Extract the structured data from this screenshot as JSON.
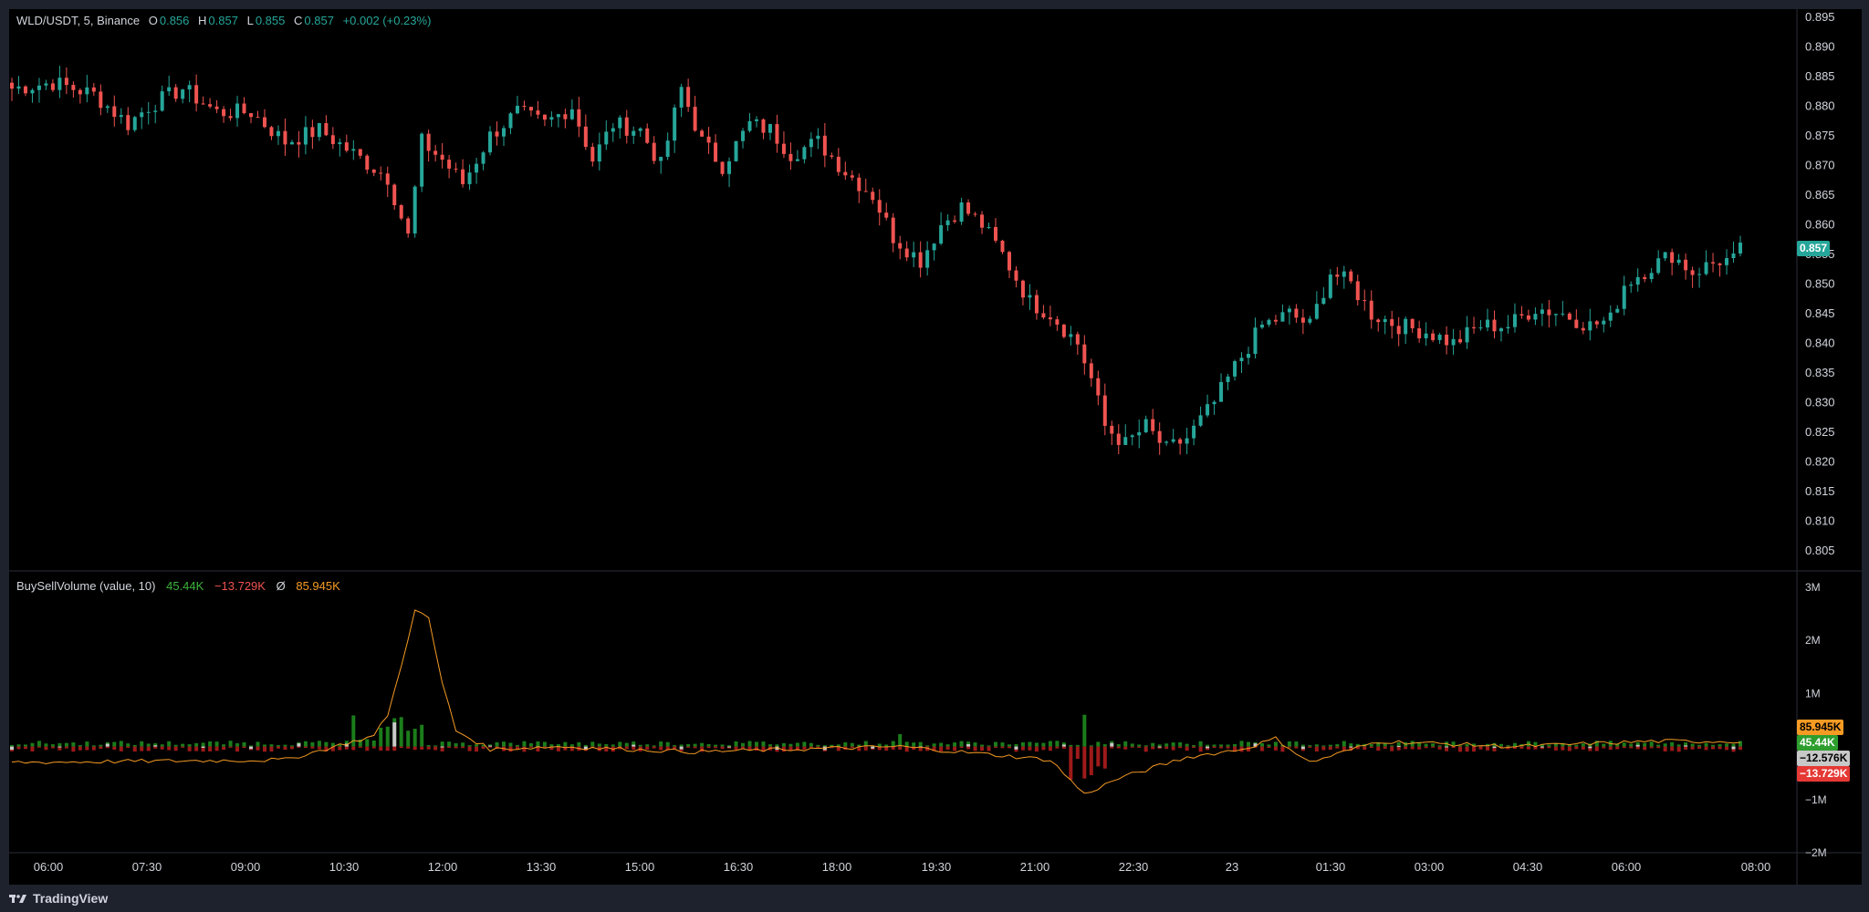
{
  "legend": {
    "symbol": "WLD/USDT, 5, Binance",
    "o_label": "O",
    "o_value": "0.856",
    "h_label": "H",
    "h_value": "0.857",
    "l_label": "L",
    "l_value": "0.855",
    "c_label": "C",
    "c_value": "0.857",
    "change": "+0.002 (+0.23%)"
  },
  "indicator": {
    "name": "BuySellVolume (value, 10)",
    "buy": "45.44K",
    "sell": "−13.729K",
    "avg_symbol": "Ø",
    "avg": "85.945K"
  },
  "badges": {
    "price": "0.857",
    "avg": "85.945K",
    "buy": "45.44K",
    "net": "−12.576K",
    "sell": "−13.729K"
  },
  "branding": {
    "name": "TradingView"
  },
  "colors": {
    "up": "#26a69a",
    "down": "#ef5350",
    "buy_vol": "#1b7d1b",
    "sell_vol": "#9e1a1a",
    "net_vol": "#c8c8c8",
    "avg_line": "#f59a23",
    "background": "#000000",
    "frame": "#1e222d"
  },
  "chart_data": [
    {
      "type": "candlestick",
      "symbol": "WLD/USDT",
      "interval": "5",
      "exchange": "Binance",
      "y_ticks": [
        "0.805",
        "0.810",
        "0.815",
        "0.820",
        "0.825",
        "0.830",
        "0.835",
        "0.840",
        "0.845",
        "0.850",
        "0.855",
        "0.860",
        "0.865",
        "0.870",
        "0.875",
        "0.880",
        "0.885",
        "0.890",
        "0.895"
      ],
      "x_ticks": [
        "06:00",
        "07:30",
        "09:00",
        "10:30",
        "12:00",
        "13:30",
        "15:00",
        "16:30",
        "18:00",
        "19:30",
        "21:00",
        "22:30",
        "23",
        "01:30",
        "03:00",
        "04:30",
        "06:00",
        "08:00"
      ],
      "ylim": [
        0.8025,
        0.8975
      ],
      "last_price": 0.857,
      "close_path": [
        [
          0,
          0.883
        ],
        [
          6,
          0.884
        ],
        [
          12,
          0.882
        ],
        [
          17,
          0.877
        ],
        [
          20,
          0.88
        ],
        [
          25,
          0.883
        ],
        [
          30,
          0.879
        ],
        [
          35,
          0.879
        ],
        [
          40,
          0.874
        ],
        [
          45,
          0.876
        ],
        [
          50,
          0.872
        ],
        [
          55,
          0.868
        ],
        [
          58,
          0.858
        ],
        [
          60,
          0.874
        ],
        [
          63,
          0.871
        ],
        [
          66,
          0.867
        ],
        [
          70,
          0.875
        ],
        [
          74,
          0.879
        ],
        [
          78,
          0.877
        ],
        [
          82,
          0.88
        ],
        [
          85,
          0.871
        ],
        [
          88,
          0.877
        ],
        [
          92,
          0.876
        ],
        [
          95,
          0.87
        ],
        [
          98,
          0.883
        ],
        [
          101,
          0.874
        ],
        [
          104,
          0.87
        ],
        [
          108,
          0.877
        ],
        [
          111,
          0.876
        ],
        [
          114,
          0.872
        ],
        [
          118,
          0.874
        ],
        [
          122,
          0.869
        ],
        [
          126,
          0.865
        ],
        [
          129,
          0.858
        ],
        [
          133,
          0.854
        ],
        [
          136,
          0.86
        ],
        [
          139,
          0.863
        ],
        [
          142,
          0.86
        ],
        [
          145,
          0.855
        ],
        [
          149,
          0.847
        ],
        [
          152,
          0.845
        ],
        [
          156,
          0.84
        ],
        [
          158,
          0.834
        ],
        [
          160,
          0.826
        ],
        [
          163,
          0.823
        ],
        [
          166,
          0.826
        ],
        [
          169,
          0.822
        ],
        [
          172,
          0.824
        ],
        [
          176,
          0.83
        ],
        [
          179,
          0.836
        ],
        [
          183,
          0.843
        ],
        [
          187,
          0.845
        ],
        [
          190,
          0.843
        ],
        [
          193,
          0.852
        ],
        [
          196,
          0.85
        ],
        [
          199,
          0.845
        ],
        [
          203,
          0.843
        ],
        [
          207,
          0.842
        ],
        [
          211,
          0.84
        ],
        [
          215,
          0.843
        ],
        [
          219,
          0.843
        ],
        [
          223,
          0.846
        ],
        [
          227,
          0.845
        ],
        [
          231,
          0.843
        ],
        [
          234,
          0.844
        ],
        [
          236,
          0.85
        ],
        [
          240,
          0.853
        ],
        [
          243,
          0.855
        ],
        [
          246,
          0.852
        ],
        [
          250,
          0.854
        ],
        [
          253,
          0.854
        ]
      ],
      "bar_count": 254
    },
    {
      "type": "bar",
      "title": "BuySellVolume (value, 10)",
      "y_ticks": [
        "3M",
        "2M",
        "1M",
        "−1M",
        "−2M"
      ],
      "ylim": [
        -2000000,
        3000000
      ],
      "last_values": {
        "buy": 45440,
        "sell": -13729,
        "net": -12576,
        "avg": 85945
      },
      "avg_line_path": [
        [
          0,
          -300000
        ],
        [
          40,
          -250000
        ],
        [
          53,
          200000
        ],
        [
          55,
          600000
        ],
        [
          57,
          1500000
        ],
        [
          59,
          2600000
        ],
        [
          61,
          2400000
        ],
        [
          63,
          1200000
        ],
        [
          65,
          300000
        ],
        [
          70,
          -50000
        ],
        [
          80,
          0
        ],
        [
          100,
          -100000
        ],
        [
          130,
          0
        ],
        [
          152,
          -250000
        ],
        [
          157,
          -900000
        ],
        [
          162,
          -600000
        ],
        [
          172,
          -200000
        ],
        [
          180,
          -50000
        ],
        [
          185,
          150000
        ],
        [
          190,
          -300000
        ],
        [
          200,
          100000
        ],
        [
          220,
          0
        ],
        [
          240,
          100000
        ],
        [
          253,
          100000
        ]
      ]
    }
  ]
}
